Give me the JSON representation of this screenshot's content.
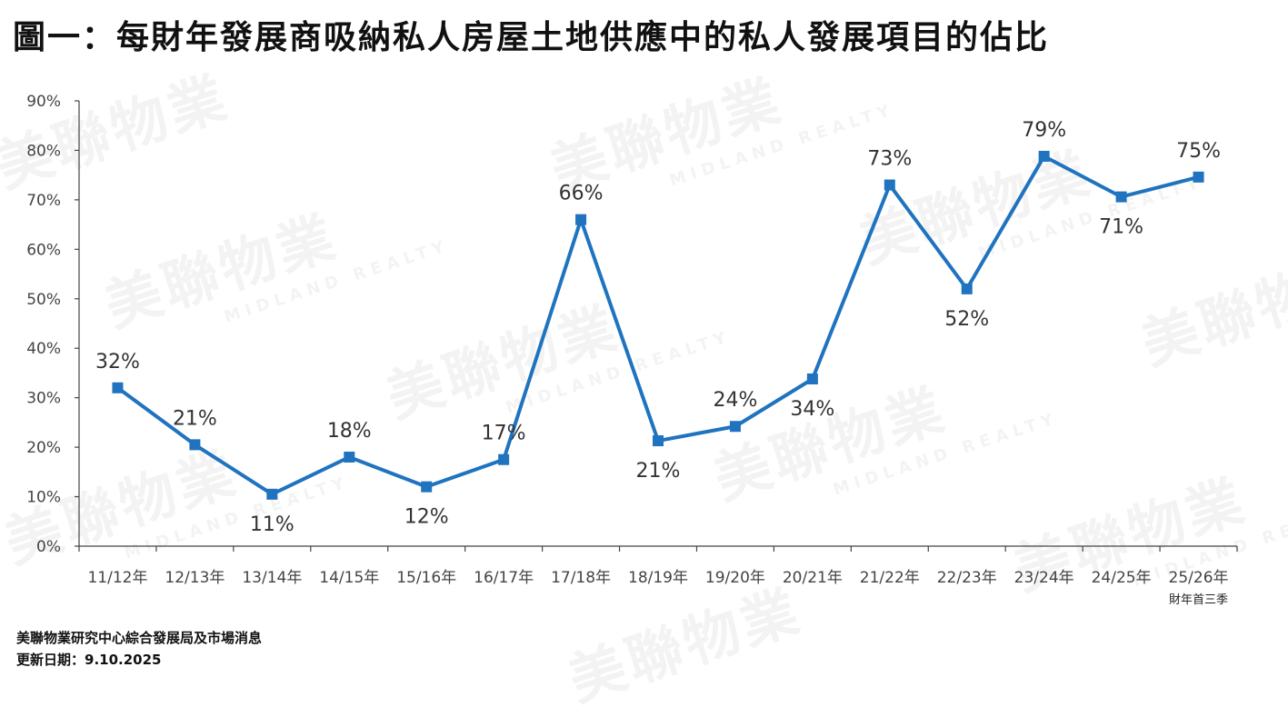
{
  "title": "圖一：每財年發展商吸納私人房屋土地供應中的私人發展項目的佔比",
  "chart_data": {
    "type": "line",
    "categories": [
      "11/12年",
      "12/13年",
      "13/14年",
      "14/15年",
      "15/16年",
      "16/17年",
      "17/18年",
      "18/19年",
      "19/20年",
      "20/21年",
      "21/22年",
      "22/23年",
      "23/24年",
      "24/25年",
      "25/26年"
    ],
    "values": [
      32,
      21,
      11,
      18,
      12,
      17,
      66,
      21,
      24,
      34,
      73,
      52,
      79,
      71,
      75
    ],
    "data_labels": [
      "32%",
      "21%",
      "11%",
      "18%",
      "12%",
      "17%",
      "66%",
      "21%",
      "24%",
      "34%",
      "73%",
      "52%",
      "79%",
      "71%",
      "75%"
    ],
    "plot_values": [
      32,
      20.5,
      10.5,
      18,
      12,
      17.5,
      66,
      21.3,
      24.2,
      33.8,
      73,
      52,
      78.8,
      70.6,
      74.6
    ],
    "yticks": [
      "0%",
      "10%",
      "20%",
      "30%",
      "40%",
      "50%",
      "60%",
      "70%",
      "80%",
      "90%"
    ],
    "ylim": [
      0,
      90
    ],
    "line_color": "#1f73bf",
    "marker": "square",
    "last_category_note": "財年首三季"
  },
  "watermark": {
    "brand_cn": "美聯物業",
    "brand_en": "MIDLAND REALTY"
  },
  "footer": {
    "source": "美聯物業研究中心綜合發展局及市場消息",
    "updated": "更新日期：9.10.2025"
  }
}
